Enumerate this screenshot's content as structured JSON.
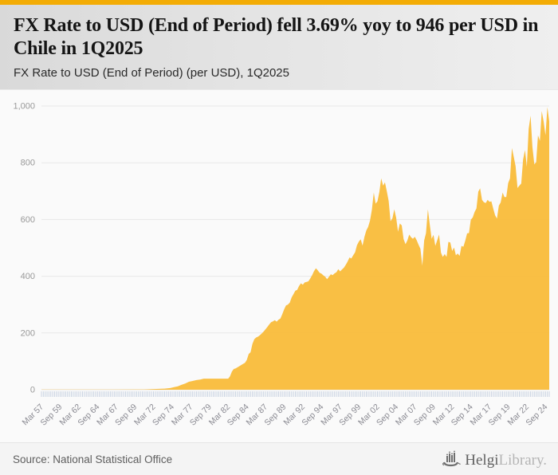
{
  "accent_color": "#f3ac05",
  "header": {
    "title": "FX Rate to USD (End of Period) fell 3.69% yoy to 946 per USD in Chile in 1Q2025",
    "subtitle": "FX Rate to USD (End of Period) (per USD), 1Q2025"
  },
  "footer": {
    "source": "Source: National Statistical Office",
    "logo_dark": "Helgi",
    "logo_light": "Library."
  },
  "chart_data": {
    "type": "area",
    "title": "FX Rate to USD (End of Period) fell 3.69% yoy to 946 per USD in Chile in 1Q2025",
    "series_name": "FX Rate to USD (End of Period) (per USD)",
    "fill_color": "#f9bc3c",
    "grid_color": "#e8e8e8",
    "tick_color": "#c9d3e2",
    "axis_label_color": "#8b8b93",
    "x_range": [
      1957.25,
      2025.25
    ],
    "x_tick_interval": 2.5,
    "ylim": [
      0,
      1000
    ],
    "grid": true,
    "legend": "none",
    "y_ticks": {
      "values": [
        0,
        200,
        400,
        600,
        800,
        1000
      ],
      "labels": [
        "0",
        "200",
        "400",
        "600",
        "800",
        "1,000"
      ]
    },
    "x_tick_labels": [
      "Mar 57",
      "Sep 59",
      "Mar 62",
      "Sep 64",
      "Mar 67",
      "Sep 69",
      "Mar 72",
      "Sep 74",
      "Mar 77",
      "Sep 79",
      "Mar 82",
      "Sep 84",
      "Mar 87",
      "Sep 89",
      "Mar 92",
      "Sep 94",
      "Mar 97",
      "Sep 99",
      "Mar 02",
      "Sep 04",
      "Mar 07",
      "Sep 09",
      "Mar 12",
      "Sep 14",
      "Mar 17",
      "Sep 19",
      "Mar 22",
      "Sep 24"
    ],
    "points": [
      [
        1957.25,
        0.5
      ],
      [
        1962,
        0.5
      ],
      [
        1967,
        0.8
      ],
      [
        1970,
        1
      ],
      [
        1971,
        1.2
      ],
      [
        1972,
        2
      ],
      [
        1973,
        3
      ],
      [
        1973.75,
        4
      ],
      [
        1974.5,
        6
      ],
      [
        1975,
        9
      ],
      [
        1975.5,
        12
      ],
      [
        1976,
        17
      ],
      [
        1976.5,
        22
      ],
      [
        1977,
        28
      ],
      [
        1977.5,
        31
      ],
      [
        1978,
        34
      ],
      [
        1978.5,
        36
      ],
      [
        1979,
        39
      ],
      [
        1980,
        39
      ],
      [
        1981,
        39
      ],
      [
        1982.25,
        39
      ],
      [
        1982.5,
        47
      ],
      [
        1982.75,
        64
      ],
      [
        1983,
        73
      ],
      [
        1983.25,
        75
      ],
      [
        1983.5,
        79
      ],
      [
        1983.75,
        83
      ],
      [
        1984,
        87
      ],
      [
        1984.25,
        91
      ],
      [
        1984.5,
        95
      ],
      [
        1984.75,
        105
      ],
      [
        1985,
        126
      ],
      [
        1985.25,
        132
      ],
      [
        1985.5,
        161
      ],
      [
        1985.75,
        178
      ],
      [
        1986,
        184
      ],
      [
        1986.25,
        187
      ],
      [
        1986.5,
        192
      ],
      [
        1986.75,
        198
      ],
      [
        1987,
        205
      ],
      [
        1987.25,
        213
      ],
      [
        1987.5,
        221
      ],
      [
        1987.75,
        230
      ],
      [
        1988,
        238
      ],
      [
        1988.25,
        241
      ],
      [
        1988.5,
        245
      ],
      [
        1988.75,
        240
      ],
      [
        1989,
        247
      ],
      [
        1989.25,
        251
      ],
      [
        1989.5,
        266
      ],
      [
        1989.75,
        283
      ],
      [
        1990,
        297
      ],
      [
        1990.25,
        300
      ],
      [
        1990.5,
        307
      ],
      [
        1990.75,
        325
      ],
      [
        1991,
        337
      ],
      [
        1991.25,
        349
      ],
      [
        1991.5,
        352
      ],
      [
        1991.75,
        366
      ],
      [
        1992,
        375
      ],
      [
        1992.25,
        370
      ],
      [
        1992.5,
        378
      ],
      [
        1992.75,
        380
      ],
      [
        1993,
        382
      ],
      [
        1993.25,
        392
      ],
      [
        1993.5,
        404
      ],
      [
        1993.75,
        418
      ],
      [
        1994,
        428
      ],
      [
        1994.25,
        421
      ],
      [
        1994.5,
        412
      ],
      [
        1994.75,
        409
      ],
      [
        1995,
        403
      ],
      [
        1995.25,
        398
      ],
      [
        1995.5,
        390
      ],
      [
        1995.75,
        398
      ],
      [
        1996,
        407
      ],
      [
        1996.25,
        404
      ],
      [
        1996.5,
        410
      ],
      [
        1996.75,
        414
      ],
      [
        1997,
        425
      ],
      [
        1997.25,
        417
      ],
      [
        1997.5,
        424
      ],
      [
        1997.75,
        430
      ],
      [
        1998,
        440
      ],
      [
        1998.25,
        452
      ],
      [
        1998.5,
        466
      ],
      [
        1998.75,
        463
      ],
      [
        1999,
        474
      ],
      [
        1999.25,
        484
      ],
      [
        1999.5,
        509
      ],
      [
        1999.75,
        522
      ],
      [
        2000,
        530
      ],
      [
        2000.25,
        508
      ],
      [
        2000.5,
        539
      ],
      [
        2000.75,
        561
      ],
      [
        2001,
        574
      ],
      [
        2001.25,
        596
      ],
      [
        2001.5,
        634
      ],
      [
        2001.75,
        695
      ],
      [
        2002,
        656
      ],
      [
        2002.25,
        664
      ],
      [
        2002.5,
        697
      ],
      [
        2002.75,
        745
      ],
      [
        2003,
        719
      ],
      [
        2003.25,
        731
      ],
      [
        2003.5,
        699
      ],
      [
        2003.75,
        665
      ],
      [
        2004,
        594
      ],
      [
        2004.25,
        604
      ],
      [
        2004.5,
        636
      ],
      [
        2004.75,
        606
      ],
      [
        2005,
        557
      ],
      [
        2005.25,
        586
      ],
      [
        2005.5,
        579
      ],
      [
        2005.75,
        531
      ],
      [
        2006,
        513
      ],
      [
        2006.25,
        526
      ],
      [
        2006.5,
        547
      ],
      [
        2006.75,
        537
      ],
      [
        2007,
        532
      ],
      [
        2007.25,
        539
      ],
      [
        2007.5,
        527
      ],
      [
        2007.75,
        511
      ],
      [
        2008,
        497
      ],
      [
        2008.25,
        437
      ],
      [
        2008.5,
        526
      ],
      [
        2008.75,
        552
      ],
      [
        2009,
        636
      ],
      [
        2009.25,
        583
      ],
      [
        2009.5,
        532
      ],
      [
        2009.75,
        546
      ],
      [
        2010,
        507
      ],
      [
        2010.25,
        527
      ],
      [
        2010.5,
        547
      ],
      [
        2010.75,
        483
      ],
      [
        2011,
        468
      ],
      [
        2011.25,
        478
      ],
      [
        2011.5,
        468
      ],
      [
        2011.75,
        521
      ],
      [
        2012,
        519
      ],
      [
        2012.25,
        489
      ],
      [
        2012.5,
        501
      ],
      [
        2012.75,
        474
      ],
      [
        2013,
        480
      ],
      [
        2013.25,
        472
      ],
      [
        2013.5,
        507
      ],
      [
        2013.75,
        504
      ],
      [
        2014,
        525
      ],
      [
        2014.25,
        551
      ],
      [
        2014.5,
        552
      ],
      [
        2014.75,
        599
      ],
      [
        2015,
        607
      ],
      [
        2015.25,
        626
      ],
      [
        2015.5,
        639
      ],
      [
        2015.75,
        698
      ],
      [
        2016,
        710
      ],
      [
        2016.25,
        669
      ],
      [
        2016.5,
        661
      ],
      [
        2016.75,
        658
      ],
      [
        2017,
        669
      ],
      [
        2017.25,
        662
      ],
      [
        2017.5,
        664
      ],
      [
        2017.75,
        639
      ],
      [
        2018,
        615
      ],
      [
        2018.25,
        603
      ],
      [
        2018.5,
        649
      ],
      [
        2018.75,
        660
      ],
      [
        2019,
        695
      ],
      [
        2019.25,
        679
      ],
      [
        2019.5,
        679
      ],
      [
        2019.75,
        728
      ],
      [
        2020,
        745
      ],
      [
        2020.25,
        852
      ],
      [
        2020.5,
        821
      ],
      [
        2020.75,
        788
      ],
      [
        2021,
        711
      ],
      [
        2021.25,
        719
      ],
      [
        2021.5,
        727
      ],
      [
        2021.75,
        811
      ],
      [
        2022,
        845
      ],
      [
        2022.25,
        786
      ],
      [
        2022.5,
        919
      ],
      [
        2022.75,
        966
      ],
      [
        2023,
        856
      ],
      [
        2023.25,
        794
      ],
      [
        2023.5,
        802
      ],
      [
        2023.75,
        897
      ],
      [
        2024,
        877
      ],
      [
        2024.25,
        982
      ],
      [
        2024.5,
        945
      ],
      [
        2024.75,
        897
      ],
      [
        2025,
        996
      ],
      [
        2025.25,
        946
      ]
    ]
  }
}
